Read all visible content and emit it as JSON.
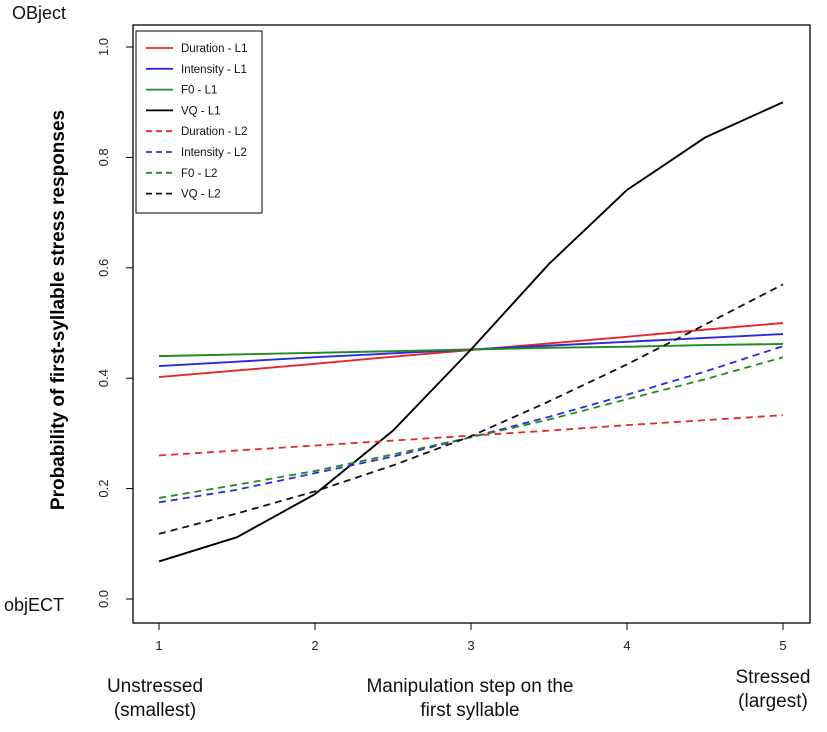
{
  "chart_data": {
    "type": "line",
    "ylabel": "Probability of first-syllable stress responses",
    "xlim": [
      1,
      5
    ],
    "ylim": [
      0,
      1
    ],
    "x_ticks": [
      "1",
      "2",
      "3",
      "4",
      "5"
    ],
    "y_ticks": [
      "0.0",
      "0.2",
      "0.4",
      "0.6",
      "0.8",
      "1.0"
    ],
    "y_top_note": "OBject",
    "y_bottom_note": "objECT",
    "x_caption_left": [
      "Unstressed",
      "(smallest)"
    ],
    "x_caption_center": [
      "Manipulation step on the",
      "first syllable"
    ],
    "x_caption_right": [
      "Stressed",
      "(largest)"
    ],
    "legend_position": "top-left",
    "grid": false,
    "x": [
      1,
      1.5,
      2,
      2.5,
      3,
      3.5,
      4,
      4.5,
      5
    ],
    "series": [
      {
        "name": "Duration - L1",
        "color": "#e8252a",
        "dashed": false,
        "values": [
          0.402,
          0.414,
          0.426,
          0.439,
          0.451,
          0.463,
          0.475,
          0.488,
          0.5
        ]
      },
      {
        "name": "Intensity - L1",
        "color": "#2b2bd9",
        "dashed": false,
        "values": [
          0.422,
          0.43,
          0.438,
          0.445,
          0.452,
          0.459,
          0.466,
          0.473,
          0.48
        ]
      },
      {
        "name": "F0 - L1",
        "color": "#1f8a1f",
        "dashed": false,
        "values": [
          0.44,
          0.443,
          0.446,
          0.449,
          0.452,
          0.455,
          0.457,
          0.46,
          0.462
        ]
      },
      {
        "name": "VQ - L1",
        "color": "#000000",
        "dashed": false,
        "values": [
          0.068,
          0.112,
          0.19,
          0.305,
          0.452,
          0.607,
          0.741,
          0.836,
          0.9
        ]
      },
      {
        "name": "Duration - L2",
        "color": "#e8252a",
        "dashed": true,
        "values": [
          0.26,
          0.269,
          0.278,
          0.287,
          0.296,
          0.305,
          0.315,
          0.324,
          0.333
        ]
      },
      {
        "name": "Intensity - L2",
        "color": "#2b2bd9",
        "dashed": true,
        "values": [
          0.175,
          0.198,
          0.228,
          0.258,
          0.293,
          0.33,
          0.37,
          0.412,
          0.458
        ]
      },
      {
        "name": "F0 - L2",
        "color": "#1f8a1f",
        "dashed": true,
        "values": [
          0.183,
          0.207,
          0.232,
          0.262,
          0.293,
          0.325,
          0.362,
          0.398,
          0.438
        ]
      },
      {
        "name": "VQ - L2",
        "color": "#111111",
        "dashed": true,
        "values": [
          0.118,
          0.155,
          0.195,
          0.242,
          0.295,
          0.358,
          0.425,
          0.497,
          0.57
        ]
      }
    ]
  }
}
